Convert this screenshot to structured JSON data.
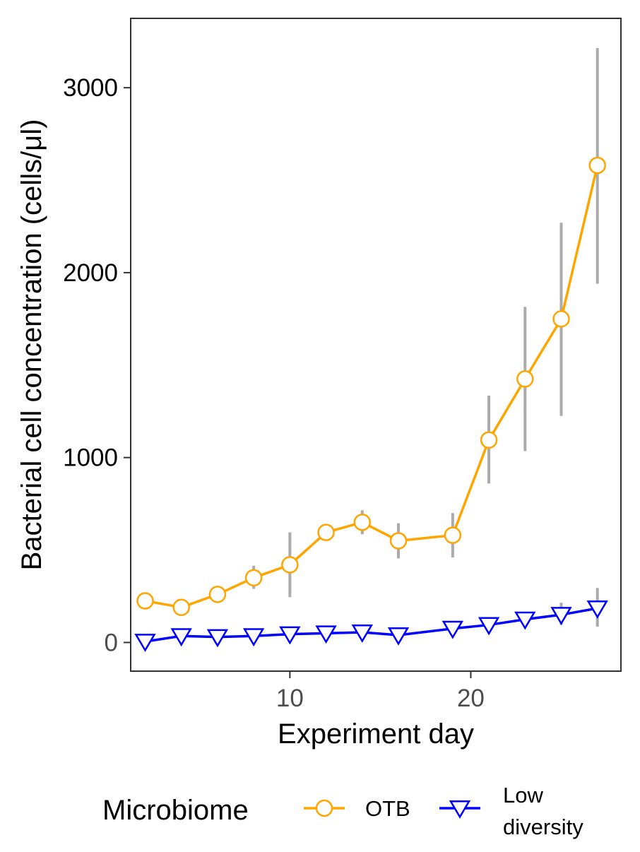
{
  "chart_data": {
    "type": "line",
    "xlabel": "Experiment day",
    "ylabel": "Bacterial cell concentration (cells/μl)",
    "xlim": [
      1.2,
      28.3
    ],
    "ylim": [
      -155,
      3375
    ],
    "x_ticks": [
      10,
      20
    ],
    "y_ticks": [
      0,
      1000,
      2000,
      3000
    ],
    "grid": false,
    "legend": {
      "title": "Microbiome",
      "position": "bottom",
      "entries": [
        "OTB",
        "Low\ndiversity"
      ]
    },
    "series": [
      {
        "name": "OTB",
        "color": "#FFA500",
        "marker": "circle",
        "x": [
          2,
          4,
          6,
          8,
          10,
          12,
          14,
          16,
          19,
          21,
          23,
          25,
          27
        ],
        "y": [
          225,
          190,
          260,
          350,
          420,
          595,
          650,
          550,
          580,
          1095,
          1425,
          1750,
          2580
        ],
        "error_low": [
          null,
          null,
          null,
          290,
          245,
          null,
          585,
          455,
          460,
          860,
          1035,
          1225,
          1940
        ],
        "error_high": [
          null,
          null,
          null,
          415,
          595,
          null,
          715,
          645,
          700,
          1335,
          1815,
          2270,
          3215
        ]
      },
      {
        "name": "Low\ndiversity",
        "color": "#0000FF",
        "marker": "triangle-down",
        "x": [
          2,
          4,
          6,
          8,
          10,
          12,
          14,
          16,
          19,
          21,
          23,
          25,
          27
        ],
        "y": [
          5,
          35,
          30,
          35,
          45,
          50,
          55,
          40,
          75,
          95,
          125,
          150,
          185
        ],
        "error_low": [
          null,
          null,
          null,
          null,
          null,
          null,
          null,
          null,
          null,
          null,
          null,
          95,
          85
        ],
        "error_high": [
          null,
          null,
          null,
          null,
          null,
          null,
          null,
          null,
          null,
          null,
          null,
          215,
          295
        ]
      }
    ],
    "error_bar_color": "#ABABAB"
  }
}
